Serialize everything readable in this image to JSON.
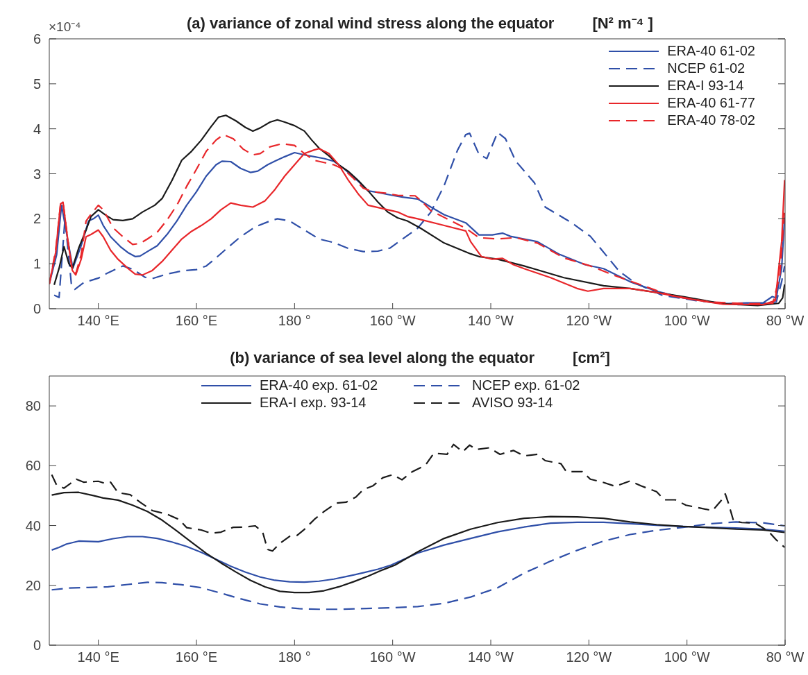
{
  "chart_data": [
    {
      "type": "line",
      "title": "(a) variance of zonal wind stress along the equator",
      "annotations": [
        "×10⁻⁴",
        "[N² m⁻⁴ ]"
      ],
      "xlim": [
        130,
        280
      ],
      "xticks": [
        {
          "value": 140,
          "label": "140 °E"
        },
        {
          "value": 160,
          "label": "160 °E"
        },
        {
          "value": 180,
          "label": "180 °"
        },
        {
          "value": 200,
          "label": "160 °W"
        },
        {
          "value": 220,
          "label": "140 °W"
        },
        {
          "value": 240,
          "label": "120 °W"
        },
        {
          "value": 260,
          "label": "100 °W"
        },
        {
          "value": 280,
          "label": "80 °W"
        }
      ],
      "ylim": [
        0,
        6
      ],
      "yticks": [
        0,
        1,
        2,
        3,
        4,
        5,
        6
      ],
      "legend": "top right",
      "series": [
        {
          "name": "ERA-40 61-02",
          "color": "#2f4fa8",
          "line_style": "solid",
          "x": [
            130,
            131.5,
            132.5,
            134.8,
            136.5,
            138,
            139,
            140,
            141,
            142.5,
            144.5,
            146,
            147.5,
            148.5,
            150,
            152,
            154,
            156,
            158,
            160,
            162,
            164,
            165.2,
            167,
            169,
            171,
            172.5,
            174.5,
            176,
            178,
            180,
            182,
            184,
            186,
            188,
            190,
            193,
            195,
            196.8,
            199.5,
            202,
            205.1,
            207.8,
            210.5,
            214.9,
            217.6,
            220.3,
            222.4,
            224,
            229.5,
            233.8,
            239.2,
            243,
            248.4,
            253.8,
            259.2,
            267.3,
            272.2,
            275.5,
            277.4,
            278.2,
            279.3,
            279.9
          ],
          "values": [
            0.55,
            1.2,
            2.3,
            0.9,
            1.4,
            1.95,
            2,
            2.08,
            1.85,
            1.6,
            1.38,
            1.25,
            1.16,
            1.17,
            1.27,
            1.4,
            1.65,
            1.95,
            2.3,
            2.6,
            2.95,
            3.2,
            3.28,
            3.27,
            3.12,
            3.03,
            3.06,
            3.2,
            3.28,
            3.38,
            3.47,
            3.42,
            3.38,
            3.34,
            3.28,
            3.12,
            2.83,
            2.62,
            2.59,
            2.53,
            2.48,
            2.44,
            2.26,
            2.09,
            1.91,
            1.64,
            1.64,
            1.68,
            1.61,
            1.49,
            1.22,
            0.98,
            0.89,
            0.6,
            0.39,
            0.24,
            0.11,
            0.13,
            0.13,
            0.27,
            0.24,
            0.9,
            2.03
          ]
        },
        {
          "name": "NCEP 61-02",
          "color": "#2f4fa8",
          "line_style": "dashed",
          "x": [
            131,
            132,
            133.2,
            134.5,
            135.2,
            137,
            140,
            142,
            145,
            147,
            149.5,
            151,
            154,
            157,
            160,
            162,
            164,
            166.5,
            169,
            172,
            175,
            176.5,
            179,
            182,
            185,
            188,
            191,
            194,
            197,
            199.5,
            202,
            205.1,
            207.8,
            210.5,
            213.2,
            214.9,
            215.7,
            217.6,
            219.2,
            221.4,
            223,
            225.1,
            228.9,
            231.1,
            236.5,
            240.3,
            243.5,
            246.2,
            249.5,
            254.9,
            261.9,
            270,
            275.5,
            278.2,
            279.3,
            279.9
          ],
          "values": [
            0.3,
            0.25,
            2,
            0.55,
            0.43,
            0.58,
            0.68,
            0.8,
            0.95,
            0.88,
            0.7,
            0.67,
            0.77,
            0.84,
            0.87,
            0.95,
            1.13,
            1.37,
            1.6,
            1.82,
            1.95,
            2,
            1.95,
            1.75,
            1.55,
            1.47,
            1.34,
            1.27,
            1.28,
            1.35,
            1.55,
            1.79,
            2.15,
            2.74,
            3.52,
            3.87,
            3.9,
            3.43,
            3.34,
            3.92,
            3.78,
            3.28,
            2.8,
            2.26,
            1.91,
            1.61,
            1.19,
            0.83,
            0.57,
            0.3,
            0.18,
            0.09,
            0.12,
            0.15,
            0.6,
            0.95
          ]
        },
        {
          "name": "ERA-I 93-14",
          "color": "#1a1a1a",
          "line_style": "solid",
          "x": [
            131,
            132,
            133,
            134,
            134.7,
            136,
            137.5,
            138.5,
            140,
            141.5,
            143,
            145,
            147,
            149,
            151.5,
            153,
            155,
            157,
            159,
            161,
            163,
            164.5,
            166,
            168,
            170,
            171.5,
            173,
            175,
            176.5,
            178,
            180,
            182,
            183.5,
            185,
            187,
            189,
            191,
            193,
            195,
            197,
            199,
            201,
            203,
            205.7,
            210.5,
            215.9,
            217.6,
            221.4,
            226.8,
            234.9,
            243,
            248.4,
            253.8,
            259.2,
            267.3,
            274.4,
            278.7,
            279.5,
            279.9
          ],
          "values": [
            0.53,
            0.9,
            1.38,
            1,
            0.9,
            1.35,
            1.75,
            2.05,
            2.2,
            2.08,
            1.98,
            1.96,
            2,
            2.15,
            2.3,
            2.45,
            2.85,
            3.3,
            3.5,
            3.75,
            4.05,
            4.26,
            4.3,
            4.18,
            4.03,
            3.95,
            4.02,
            4.15,
            4.2,
            4.15,
            4.07,
            3.95,
            3.75,
            3.57,
            3.4,
            3.2,
            3.05,
            2.85,
            2.62,
            2.37,
            2.15,
            2.02,
            1.95,
            1.79,
            1.46,
            1.22,
            1.16,
            1.1,
            0.95,
            0.69,
            0.51,
            0.45,
            0.36,
            0.27,
            0.11,
            0.07,
            0.12,
            0.24,
            0.54
          ]
        },
        {
          "name": "ERA-40 61-77",
          "color": "#e8262a",
          "line_style": "solid",
          "x": [
            130,
            131.3,
            132.3,
            132.8,
            133.8,
            134.7,
            135.4,
            136.5,
            137.5,
            138.5,
            140,
            141,
            142.5,
            144,
            146,
            147.5,
            149,
            151,
            153,
            155,
            157,
            159,
            161,
            163,
            165,
            167,
            169,
            171.5,
            174,
            176,
            178,
            180,
            182,
            184,
            185,
            187,
            189,
            191,
            193,
            195,
            197,
            199,
            201,
            203,
            205.1,
            210.5,
            214.9,
            215.9,
            218.1,
            220.3,
            222.4,
            224.6,
            226.8,
            232.2,
            237.6,
            239.8,
            243,
            248.4,
            253.8,
            259.2,
            267.3,
            275.5,
            278,
            279.3,
            279.9
          ],
          "values": [
            0.55,
            1.25,
            2.33,
            2.37,
            1.5,
            0.85,
            0.75,
            1.1,
            1.6,
            1.65,
            1.75,
            1.6,
            1.3,
            1.1,
            0.9,
            0.77,
            0.75,
            0.85,
            1.05,
            1.3,
            1.55,
            1.72,
            1.85,
            2,
            2.2,
            2.35,
            2.3,
            2.26,
            2.4,
            2.65,
            2.95,
            3.2,
            3.45,
            3.53,
            3.56,
            3.45,
            3.2,
            2.85,
            2.55,
            2.3,
            2.25,
            2.2,
            2.15,
            2.05,
            2,
            1.85,
            1.73,
            1.49,
            1.16,
            1.1,
            1.12,
            0.98,
            0.89,
            0.69,
            0.45,
            0.39,
            0.45,
            0.45,
            0.36,
            0.24,
            0.1,
            0.09,
            0.18,
            1.49,
            2.86
          ]
        },
        {
          "name": "ERA-40 78-02",
          "color": "#e8262a",
          "line_style": "dashed",
          "x": [
            130,
            131.3,
            132.3,
            132.8,
            133.8,
            134.7,
            135.4,
            136.5,
            137.5,
            138.5,
            140,
            141,
            143,
            145,
            147,
            148.5,
            150,
            152,
            154,
            156,
            158,
            160,
            162,
            164,
            165.5,
            167.5,
            169.5,
            171.5,
            173,
            175,
            177.5,
            180,
            182,
            184,
            186,
            188,
            190,
            192,
            194,
            196,
            198.5,
            201,
            204.6,
            205.7,
            207.8,
            210.5,
            214.9,
            217.6,
            221.4,
            225.1,
            229.5,
            234.9,
            240.3,
            245.7,
            251.1,
            256.5,
            264.6,
            272.7,
            277.5,
            278.9,
            279.9
          ],
          "values": [
            0.55,
            1.3,
            2.33,
            2.37,
            1.5,
            0.85,
            0.78,
            1.2,
            1.95,
            2.1,
            2.3,
            2.2,
            1.8,
            1.6,
            1.43,
            1.45,
            1.55,
            1.7,
            1.97,
            2.3,
            2.72,
            3.1,
            3.5,
            3.75,
            3.87,
            3.78,
            3.55,
            3.42,
            3.45,
            3.6,
            3.67,
            3.63,
            3.45,
            3.3,
            3.25,
            3.2,
            3.1,
            2.9,
            2.68,
            2.6,
            2.57,
            2.52,
            2.51,
            2.41,
            2.18,
            2.03,
            1.79,
            1.58,
            1.55,
            1.58,
            1.46,
            1.13,
            0.95,
            0.72,
            0.51,
            0.3,
            0.15,
            0.11,
            0.12,
            0.72,
            2.2
          ]
        }
      ]
    },
    {
      "type": "line",
      "title": "(b) variance of sea level along the equator",
      "annotations": [
        "[cm²]"
      ],
      "xlim": [
        130,
        280
      ],
      "xticks": [
        {
          "value": 140,
          "label": "140 °E"
        },
        {
          "value": 160,
          "label": "160 °E"
        },
        {
          "value": 180,
          "label": "180 °"
        },
        {
          "value": 200,
          "label": "160 °W"
        },
        {
          "value": 220,
          "label": "140 °W"
        },
        {
          "value": 240,
          "label": "120 °W"
        },
        {
          "value": 260,
          "label": "100 °W"
        },
        {
          "value": 280,
          "label": "80 °W"
        }
      ],
      "ylim": [
        0,
        90
      ],
      "yticks": [
        0,
        20,
        40,
        60,
        80
      ],
      "legend": "top",
      "series": [
        {
          "name": "ERA-40 exp. 61-02",
          "color": "#2f4fa8",
          "line_style": "solid",
          "x": [
            130.5,
            132,
            133.5,
            136,
            140,
            143,
            146,
            149,
            152,
            155,
            158,
            161,
            164,
            167,
            170,
            173,
            176,
            179,
            182,
            185,
            188,
            191,
            194,
            197,
            199.7,
            205.1,
            210.5,
            215.9,
            221.4,
            226.8,
            232.2,
            237.6,
            243,
            248.4,
            253.8,
            259.2,
            264.6,
            270,
            275.5,
            279.9
          ],
          "values": [
            31.8,
            32.7,
            33.8,
            34.8,
            34.6,
            35.6,
            36.3,
            36.3,
            35.7,
            34.5,
            33,
            31,
            28.7,
            26.4,
            24.4,
            22.8,
            21.7,
            21.2,
            21.1,
            21.4,
            22.1,
            23.1,
            24.2,
            25.4,
            26.8,
            30.8,
            33.5,
            35.7,
            37.9,
            39.5,
            40.8,
            41.1,
            41.1,
            40.6,
            40.1,
            39.7,
            39.4,
            39.2,
            38.8,
            38.1
          ]
        },
        {
          "name": "NCEP exp. 61-02",
          "color": "#2f4fa8",
          "line_style": "dashed",
          "x": [
            130.5,
            134,
            138,
            142,
            146,
            150,
            153,
            157,
            161,
            165,
            169,
            173,
            177,
            181,
            185,
            189,
            193,
            197,
            199.7,
            205.1,
            210.5,
            215.9,
            221.4,
            226.8,
            232.2,
            237.6,
            243,
            248.4,
            253.8,
            259.2,
            264.6,
            270,
            275.5,
            279.9
          ],
          "values": [
            18.5,
            19.1,
            19.3,
            19.5,
            20.3,
            21,
            20.9,
            20.2,
            19.2,
            17.4,
            15.5,
            13.8,
            12.8,
            12.2,
            12,
            12,
            12.2,
            12.4,
            12.5,
            12.9,
            14,
            16.1,
            19.2,
            24.1,
            28.1,
            31.7,
            34.8,
            37,
            38.4,
            39.4,
            40.6,
            41.2,
            40.9,
            39.9
          ]
        },
        {
          "name": "ERA-I exp. 93-14",
          "color": "#1a1a1a",
          "line_style": "solid",
          "x": [
            130.5,
            133,
            136,
            139,
            141,
            144,
            147,
            150,
            153,
            156,
            159,
            162,
            165,
            168,
            171,
            174,
            177,
            180,
            183,
            186,
            189,
            192,
            195,
            198,
            200.5,
            205.1,
            210.5,
            215.9,
            221.4,
            226.8,
            232.2,
            237.6,
            243,
            248.4,
            253.8,
            259.2,
            264.6,
            270,
            275.5,
            279.9
          ],
          "values": [
            50.2,
            51,
            51.1,
            50,
            49.2,
            48.5,
            46.8,
            44.7,
            41.8,
            38.2,
            34.4,
            30.7,
            27.5,
            24.5,
            21.7,
            19.5,
            18,
            17.6,
            17.6,
            18.2,
            19.5,
            21.2,
            23.1,
            25.2,
            26.8,
            31.2,
            35.7,
            38.8,
            41,
            42.4,
            43,
            42.9,
            42.4,
            41.2,
            40.3,
            39.7,
            39.3,
            38.8,
            38.5,
            37.7
          ]
        },
        {
          "name": "AVISO 93-14",
          "color": "#1a1a1a",
          "line_style": "dashed",
          "x": [
            130.5,
            131.5,
            133,
            135.5,
            137,
            140,
            141.5,
            142.5,
            144,
            146.5,
            148.5,
            151,
            154,
            156.5,
            158,
            161,
            163,
            165,
            167.5,
            170,
            172,
            173.5,
            174.5,
            175.5,
            177,
            179,
            180.5,
            182,
            184,
            186,
            188.5,
            190.5,
            192.5,
            194,
            196,
            198,
            200,
            201.9,
            204,
            206.7,
            208.4,
            211.1,
            212.4,
            214.3,
            215.7,
            217,
            219.7,
            221.9,
            224.6,
            226.8,
            229.5,
            231.1,
            234.3,
            235.4,
            238.7,
            240.3,
            243,
            245.4,
            248.4,
            250.6,
            253.8,
            255.4,
            257.6,
            259.8,
            262.5,
            265.2,
            267.1,
            267.8,
            268.4,
            269.5,
            271.2,
            273.9,
            276.6,
            278.2,
            279.9
          ],
          "values": [
            57,
            53.5,
            52.5,
            55.5,
            54.5,
            54.8,
            54,
            54.5,
            51,
            50.3,
            47.8,
            45,
            43.8,
            42,
            39.3,
            38.5,
            37.4,
            37.8,
            39.4,
            39.5,
            39.9,
            37.8,
            32,
            31.5,
            34,
            36.4,
            36.7,
            38.7,
            42,
            44.7,
            47.5,
            47.8,
            49.5,
            52,
            53.3,
            56,
            57,
            55.3,
            58,
            60.2,
            64.2,
            63.8,
            67.1,
            64.7,
            66.9,
            65.4,
            66,
            63.8,
            65.1,
            63.3,
            63.8,
            61.7,
            60.7,
            58,
            58,
            55.5,
            54.4,
            53.1,
            54.9,
            53.3,
            51.3,
            48.6,
            48.6,
            46.8,
            45.9,
            45,
            48.6,
            50.6,
            47.7,
            41.5,
            41,
            40.8,
            38.1,
            35.2,
            32.7
          ]
        }
      ]
    }
  ]
}
